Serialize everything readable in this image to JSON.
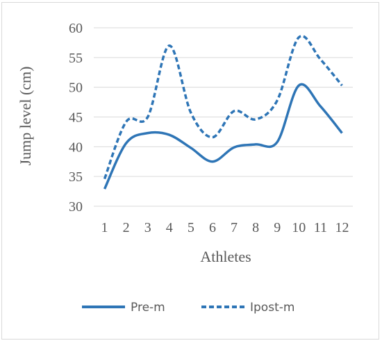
{
  "chart_data": {
    "type": "line",
    "title": "",
    "xlabel": "Athletes",
    "ylabel": "Jump level (cm)",
    "categories": [
      "1",
      "2",
      "3",
      "4",
      "5",
      "6",
      "7",
      "8",
      "9",
      "10",
      "11",
      "12"
    ],
    "ylim": [
      30,
      60
    ],
    "yticks": [
      30,
      35,
      40,
      45,
      50,
      55,
      60
    ],
    "grid": true,
    "legend_position": "bottom",
    "series": [
      {
        "name": "Pre-m",
        "style": "solid",
        "color": "#2e75b6",
        "values": [
          32.9,
          40.6,
          42.3,
          42.0,
          39.8,
          37.5,
          39.9,
          40.4,
          40.8,
          50.3,
          46.8,
          42.3
        ]
      },
      {
        "name": "Ipost-m",
        "style": "dashed",
        "color": "#2e75b6",
        "values": [
          34.6,
          44.2,
          45.0,
          57.0,
          45.7,
          41.6,
          46.0,
          44.6,
          47.8,
          58.4,
          54.7,
          50.3
        ]
      }
    ]
  }
}
